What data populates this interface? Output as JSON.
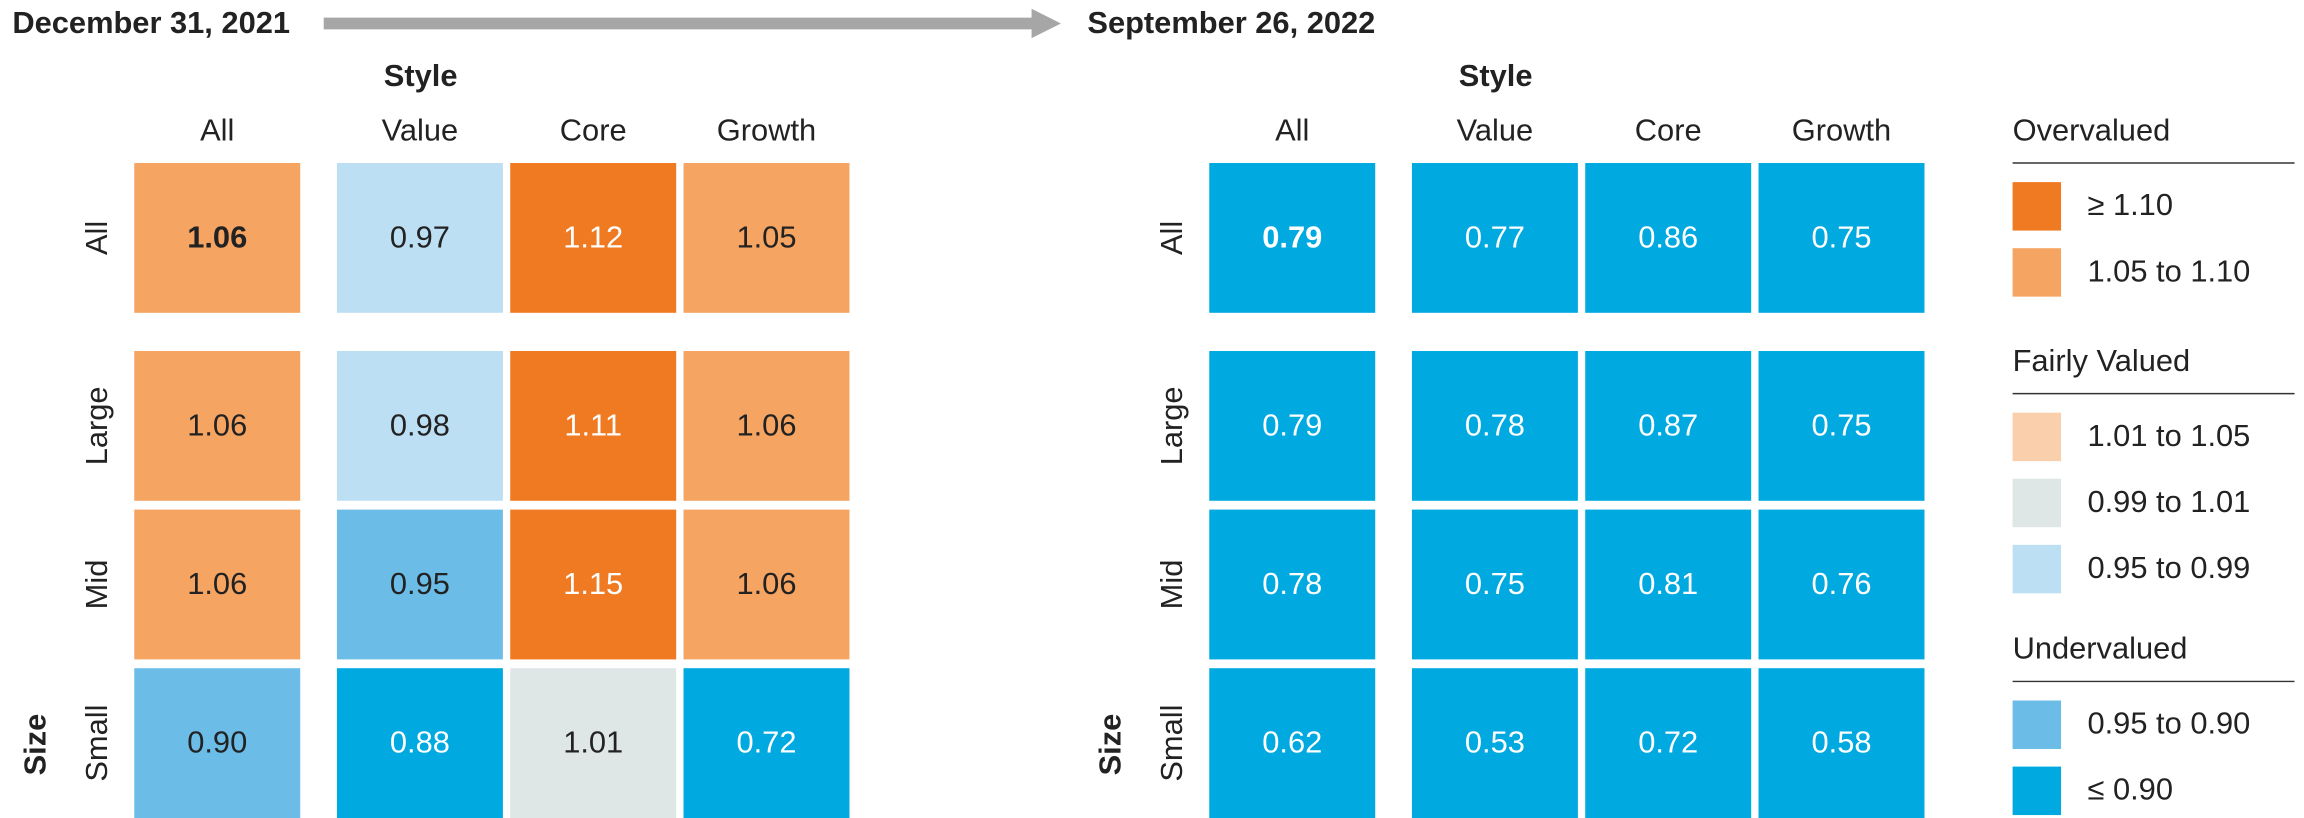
{
  "panels": [
    {
      "date": "December 31, 2021",
      "style_label": "Style",
      "size_label": "Size",
      "columns": [
        "All",
        "Value",
        "Core",
        "Growth"
      ],
      "rows": [
        {
          "label": "All",
          "values": [
            "1.06",
            "0.97",
            "1.12",
            "1.05"
          ],
          "colors": [
            "#f5a462",
            "#bddff3",
            "#f07a22",
            "#f5a462"
          ]
        },
        {
          "label": "Large",
          "values": [
            "1.06",
            "0.98",
            "1.11",
            "1.06"
          ],
          "colors": [
            "#f5a462",
            "#bddff3",
            "#f07a22",
            "#f5a462"
          ]
        },
        {
          "label": "Mid",
          "values": [
            "1.06",
            "0.95",
            "1.15",
            "1.06"
          ],
          "colors": [
            "#f5a462",
            "#6bbde8",
            "#f07a22",
            "#f5a462"
          ]
        },
        {
          "label": "Small",
          "values": [
            "0.90",
            "0.88",
            "1.01",
            "0.72"
          ],
          "colors": [
            "#6bbde8",
            "#00a9e0",
            "#dfe6e6",
            "#00a9e0"
          ]
        }
      ]
    },
    {
      "date": "September 26, 2022",
      "style_label": "Style",
      "size_label": "Size",
      "columns": [
        "All",
        "Value",
        "Core",
        "Growth"
      ],
      "rows": [
        {
          "label": "All",
          "values": [
            "0.79",
            "0.77",
            "0.86",
            "0.75"
          ],
          "colors": [
            "#00a9e0",
            "#00a9e0",
            "#00a9e0",
            "#00a9e0"
          ]
        },
        {
          "label": "Large",
          "values": [
            "0.79",
            "0.78",
            "0.87",
            "0.75"
          ],
          "colors": [
            "#00a9e0",
            "#00a9e0",
            "#00a9e0",
            "#00a9e0"
          ]
        },
        {
          "label": "Mid",
          "values": [
            "0.78",
            "0.75",
            "0.81",
            "0.76"
          ],
          "colors": [
            "#00a9e0",
            "#00a9e0",
            "#00a9e0",
            "#00a9e0"
          ]
        },
        {
          "label": "Small",
          "values": [
            "0.62",
            "0.53",
            "0.72",
            "0.58"
          ],
          "colors": [
            "#00a9e0",
            "#00a9e0",
            "#00a9e0",
            "#00a9e0"
          ]
        }
      ]
    }
  ],
  "legend": [
    {
      "title": "Overvalued",
      "items": [
        {
          "label": "≥ 1.10",
          "color": "#f07a22"
        },
        {
          "label": "1.05 to 1.10",
          "color": "#f5a462"
        }
      ]
    },
    {
      "title": "Fairly Valued",
      "items": [
        {
          "label": "1.01 to 1.05",
          "color": "#f9cfac"
        },
        {
          "label": "0.99 to 1.01",
          "color": "#dfe6e6"
        },
        {
          "label": "0.95 to 0.99",
          "color": "#bddff3"
        }
      ]
    },
    {
      "title": "Undervalued",
      "items": [
        {
          "label": "0.95 to 0.90",
          "color": "#6bbde8"
        },
        {
          "label": "≤ 0.90",
          "color": "#00a9e0"
        }
      ]
    }
  ]
}
